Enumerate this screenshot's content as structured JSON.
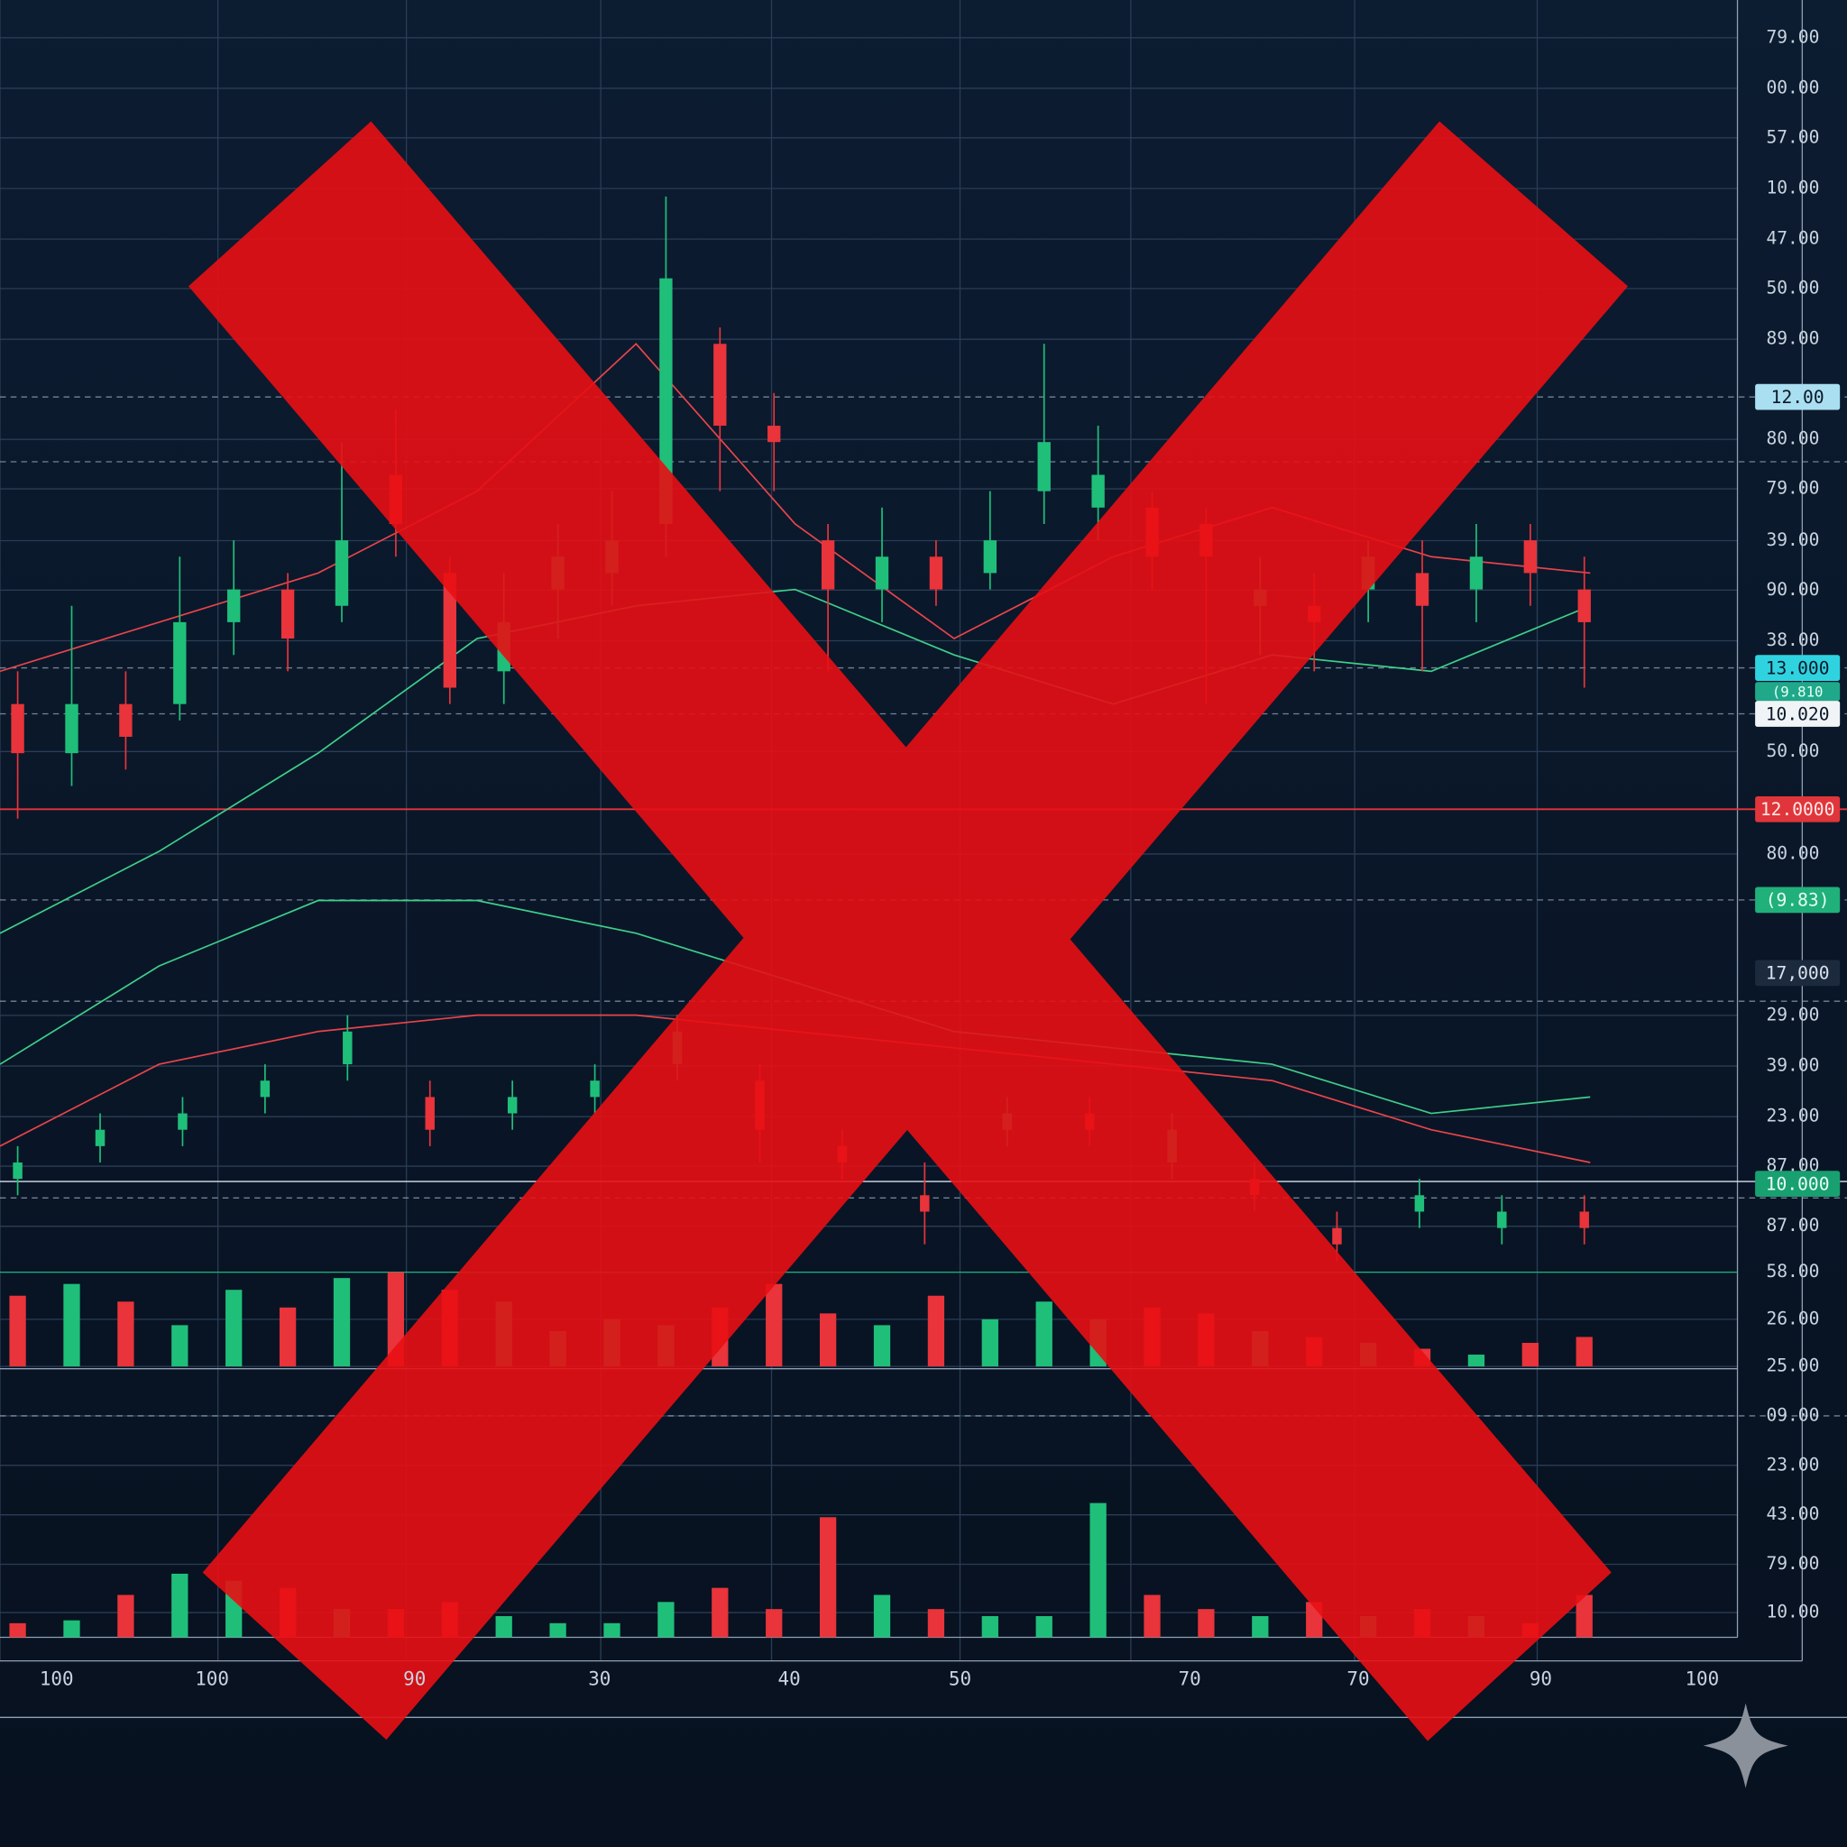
{
  "chart_data": {
    "type": "candlestick",
    "ylim": [
      0,
      100
    ],
    "up_color": "#1fbf7a",
    "down_color": "#e8343a",
    "candles": [
      {
        "open": [
          57,
          54,
          57,
          57,
          62,
          64,
          63,
          71,
          65,
          59,
          64,
          65,
          68,
          79,
          74,
          67,
          64,
          66,
          65,
          70,
          69,
          69,
          68,
          63,
          63,
          64,
          65,
          64,
          67,
          64
        ],
        "high": [
          59,
          63,
          59,
          66,
          67,
          65,
          73,
          75,
          66,
          65,
          68,
          70,
          88,
          80,
          76,
          68,
          69,
          67,
          70,
          79,
          74,
          70,
          69,
          66,
          65,
          67,
          67,
          68,
          68,
          66
        ],
        "low": [
          50,
          52,
          53,
          56,
          60,
          59,
          62,
          66,
          57,
          57,
          61,
          63,
          66,
          70,
          70,
          59,
          62,
          63,
          64,
          68,
          67,
          64,
          57,
          60,
          59,
          62,
          59,
          62,
          63,
          58
        ],
        "close": [
          54,
          57,
          55,
          62,
          64,
          61,
          67,
          68,
          58,
          62,
          66,
          67,
          83,
          74,
          73,
          64,
          66,
          64,
          67,
          73,
          71,
          66,
          66,
          64,
          62,
          66,
          63,
          66,
          65,
          62
        ]
      },
      {
        "open": [
          28,
          30,
          31,
          33,
          35,
          33,
          32,
          33,
          35,
          34,
          30,
          27,
          31,
          32,
          29,
          28,
          25,
          26,
          25,
          26
        ],
        "high": [
          30,
          32,
          33,
          35,
          38,
          34,
          34,
          35,
          38,
          35,
          31,
          29,
          33,
          33,
          32,
          29,
          26,
          28,
          27,
          27
        ],
        "low": [
          27,
          29,
          30,
          32,
          34,
          30,
          31,
          32,
          34,
          29,
          28,
          24,
          30,
          30,
          28,
          26,
          23,
          25,
          24,
          24
        ],
        "close": [
          29,
          31,
          32,
          34,
          37,
          31,
          33,
          34,
          37,
          31,
          29,
          26,
          32,
          31,
          31,
          27,
          24,
          27,
          26,
          25
        ]
      }
    ],
    "lines": [
      {
        "color": "#e8444a",
        "values": [
          59,
          62,
          65,
          70,
          79,
          68,
          61,
          66,
          69,
          66,
          65
        ]
      },
      {
        "color": "#3fcf8a",
        "values": [
          43,
          48,
          54,
          61,
          63,
          64,
          60,
          57,
          60,
          59,
          63
        ]
      },
      {
        "color": "#3fcf8a",
        "values": [
          35,
          41,
          45,
          45,
          43,
          40,
          37,
          36,
          35,
          32,
          33
        ]
      },
      {
        "color": "#e8444a",
        "values": [
          30,
          35,
          37,
          38,
          38,
          37,
          36,
          35,
          34,
          31,
          29
        ]
      }
    ],
    "volumes": [
      {
        "ylim": [
          0,
          100
        ],
        "values": [
          60,
          70,
          55,
          35,
          65,
          50,
          75,
          80,
          65,
          55,
          30,
          40,
          35,
          50,
          70,
          45,
          35,
          60,
          40,
          55,
          40,
          50,
          45,
          30,
          25,
          20,
          15,
          10,
          20,
          25
        ]
      },
      {
        "ylim": [
          0,
          100
        ],
        "values": [
          10,
          12,
          30,
          45,
          40,
          35,
          20,
          20,
          25,
          15,
          10,
          10,
          25,
          35,
          20,
          85,
          30,
          20,
          15,
          15,
          95,
          30,
          20,
          15,
          25,
          15,
          20,
          15,
          10,
          30
        ]
      }
    ],
    "price_axis_labels": [
      "79.00",
      "00.00",
      "57.00",
      "10.00",
      "47.00",
      "50.00",
      "89.00",
      "80.00",
      "79.00",
      "39.00",
      "90.00",
      "38.00",
      "50.00",
      "80.00",
      "29.00",
      "39.00",
      "23.00",
      "87.00",
      "87.00",
      "58.00",
      "26.00",
      "25.00",
      "09.00",
      "23.00",
      "43.00",
      "79.00",
      "10.00"
    ],
    "x_axis_labels": [
      "100",
      "100",
      "90",
      "30",
      "40",
      "50",
      "70",
      "70",
      "90",
      "100"
    ],
    "price_tags": [
      {
        "label": "12.00",
        "color": "#a9dff0",
        "text_color": "#0b1829"
      },
      {
        "label": "13.000",
        "color": "#2fd3e0",
        "text_color": "#0b1829"
      },
      {
        "label": "(9.810",
        "color": "#1fa98a",
        "text_color": "#e8fff6"
      },
      {
        "label": "10.020",
        "color": "#f0f4f6",
        "text_color": "#0b1829"
      },
      {
        "label": "12.0000",
        "color": "#e0353a",
        "text_color": "#ffe8e8"
      },
      {
        "label": "(9.83)",
        "color": "#20b07a",
        "text_color": "#e8fff6"
      },
      {
        "label": "17,000",
        "color": "#1c2a3d",
        "text_color": "#d8e2ee"
      },
      {
        "label": "10.000",
        "color": "#18a070",
        "text_color": "#e8fff6"
      }
    ]
  }
}
